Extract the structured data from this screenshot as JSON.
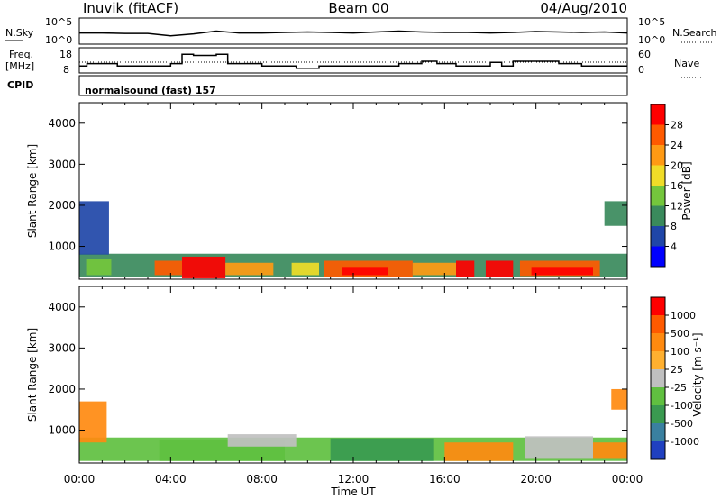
{
  "header": {
    "station": "Inuvik (fitACF)",
    "beam": "Beam 00",
    "date": "04/Aug/2010"
  },
  "status": {
    "nsky_label": "N.Sky",
    "nsearch_label": "N.Search",
    "freq_label_1": "Freq.",
    "freq_label_2": "[MHz]",
    "nave_label": "Nave",
    "cpid_label": "CPID",
    "mode_label": "normalsound (fast) 157",
    "noise_ticks_left": [
      "10^5",
      "10^0"
    ],
    "noise_ticks_right": [
      "10^5",
      "10^0"
    ],
    "freq_ticks_left": [
      "18",
      "8"
    ],
    "freq_ticks_right": [
      "60",
      "0"
    ]
  },
  "colorbars": {
    "power": {
      "label": "Power [dB]",
      "ticks": [
        "28",
        "24",
        "20",
        "16",
        "12",
        "8",
        "4"
      ],
      "colors": [
        "#0000ff",
        "#1f46a8",
        "#3a8a5c",
        "#74c63c",
        "#f0dc28",
        "#ff9a14",
        "#ff5a00",
        "#ff0000"
      ]
    },
    "velocity": {
      "label": "Velocity [m s⁻¹]",
      "ticks": [
        "1000",
        "500",
        "100",
        "25",
        "-25",
        "-100",
        "-500",
        "-1000"
      ],
      "colors": [
        "#2040c0",
        "#3a80a0",
        "#3a9a50",
        "#60c040",
        "#c0c0c0",
        "#ffb030",
        "#ff8a10",
        "#ff5a00",
        "#ff0000"
      ]
    }
  },
  "chart_data": [
    {
      "type": "line",
      "name": "noise",
      "x": [
        "00:00",
        "01:00",
        "02:00",
        "03:00",
        "04:00",
        "05:00",
        "06:00",
        "07:00",
        "08:00",
        "09:00",
        "10:00",
        "11:00",
        "12:00",
        "13:00",
        "14:00",
        "15:00",
        "16:00",
        "17:00",
        "18:00",
        "19:00",
        "20:00",
        "21:00",
        "22:00",
        "23:00",
        "24:00"
      ],
      "values": [
        2.2,
        2.2,
        2.1,
        2.1,
        1.6,
        2.0,
        2.6,
        2.2,
        2.2,
        2.3,
        2.4,
        2.3,
        2.2,
        2.4,
        2.6,
        2.4,
        2.3,
        2.3,
        2.2,
        2.3,
        2.5,
        2.4,
        2.3,
        2.4,
        2.2
      ],
      "ylim": [
        0,
        5
      ]
    },
    {
      "type": "line",
      "name": "frequency",
      "x": [
        "00:00",
        "00:20",
        "01:40",
        "02:40",
        "04:00",
        "04:30",
        "05:00",
        "06:00",
        "06:30",
        "08:00",
        "08:30",
        "09:30",
        "10:30",
        "12:00",
        "13:00",
        "14:00",
        "15:00",
        "15:40",
        "16:30",
        "17:10",
        "18:00",
        "18:30",
        "19:00",
        "21:00",
        "22:00",
        "24:00"
      ],
      "values": [
        11,
        12,
        11,
        11,
        12,
        16,
        15.5,
        16,
        12,
        11,
        11,
        10,
        11,
        11,
        11,
        12,
        13,
        12,
        11,
        11,
        12.5,
        11,
        13,
        12,
        11,
        11
      ],
      "ylim": [
        8,
        18
      ]
    },
    {
      "type": "heatmap",
      "name": "power",
      "x": [
        "00:00",
        "04:00",
        "08:00",
        "12:00",
        "16:00",
        "20:00",
        "00:00"
      ],
      "y_ticks": [
        1000,
        2000,
        3000,
        4000
      ],
      "ylabel": "Slant Range [km]",
      "xlabel": "Time UT",
      "ylim": [
        200,
        4500
      ],
      "xlim": [
        0,
        24
      ],
      "bands": [
        {
          "t0": 0,
          "t1": 24,
          "r0": 250,
          "r1": 820,
          "level": 2
        },
        {
          "t0": 0,
          "t1": 1.3,
          "r0": 800,
          "r1": 2100,
          "level": 1
        },
        {
          "t0": 0.3,
          "t1": 1.4,
          "r0": 300,
          "r1": 700,
          "level": 3
        },
        {
          "t0": 3.3,
          "t1": 4.5,
          "r0": 300,
          "r1": 650,
          "level": 6
        },
        {
          "t0": 4.5,
          "t1": 6.4,
          "r0": 220,
          "r1": 750,
          "level": 7
        },
        {
          "t0": 6.4,
          "t1": 8.5,
          "r0": 300,
          "r1": 600,
          "level": 5
        },
        {
          "t0": 9.3,
          "t1": 10.5,
          "r0": 300,
          "r1": 600,
          "level": 4
        },
        {
          "t0": 10.7,
          "t1": 14.6,
          "r0": 250,
          "r1": 650,
          "level": 6
        },
        {
          "t0": 11.5,
          "t1": 13.5,
          "r0": 300,
          "r1": 500,
          "level": 7
        },
        {
          "t0": 14.6,
          "t1": 16.5,
          "r0": 300,
          "r1": 600,
          "level": 5
        },
        {
          "t0": 16.5,
          "t1": 17.3,
          "r0": 250,
          "r1": 650,
          "level": 7
        },
        {
          "t0": 17.8,
          "t1": 19.0,
          "r0": 250,
          "r1": 650,
          "level": 7
        },
        {
          "t0": 19.3,
          "t1": 22.8,
          "r0": 280,
          "r1": 650,
          "level": 6
        },
        {
          "t0": 19.8,
          "t1": 22.5,
          "r0": 300,
          "r1": 500,
          "level": 7
        },
        {
          "t0": 23.0,
          "t1": 24.0,
          "r0": 1500,
          "r1": 2100,
          "level": 2
        }
      ]
    },
    {
      "type": "heatmap",
      "name": "velocity",
      "x": [
        "00:00",
        "04:00",
        "08:00",
        "12:00",
        "16:00",
        "20:00",
        "00:00"
      ],
      "y_ticks": [
        1000,
        2000,
        3000,
        4000
      ],
      "ylabel": "Slant Range [km]",
      "xlabel": "Time UT",
      "ylim": [
        200,
        4500
      ],
      "xlim": [
        0,
        24
      ],
      "bands": [
        {
          "t0": 0,
          "t1": 24,
          "r0": 250,
          "r1": 820,
          "level": 3
        },
        {
          "t0": 0,
          "t1": 1.2,
          "r0": 700,
          "r1": 1700,
          "level": 6
        },
        {
          "t0": 3.5,
          "t1": 9.0,
          "r0": 250,
          "r1": 750,
          "level": 3
        },
        {
          "t0": 6.5,
          "t1": 9.5,
          "r0": 600,
          "r1": 900,
          "level": 4
        },
        {
          "t0": 11.0,
          "t1": 15.5,
          "r0": 250,
          "r1": 800,
          "level": 2
        },
        {
          "t0": 16.0,
          "t1": 19.0,
          "r0": 250,
          "r1": 700,
          "level": 6
        },
        {
          "t0": 19.5,
          "t1": 22.5,
          "r0": 300,
          "r1": 850,
          "level": 4
        },
        {
          "t0": 22.5,
          "t1": 24.0,
          "r0": 300,
          "r1": 700,
          "level": 6
        },
        {
          "t0": 23.3,
          "t1": 24.0,
          "r0": 1500,
          "r1": 2000,
          "level": 6
        }
      ]
    }
  ]
}
